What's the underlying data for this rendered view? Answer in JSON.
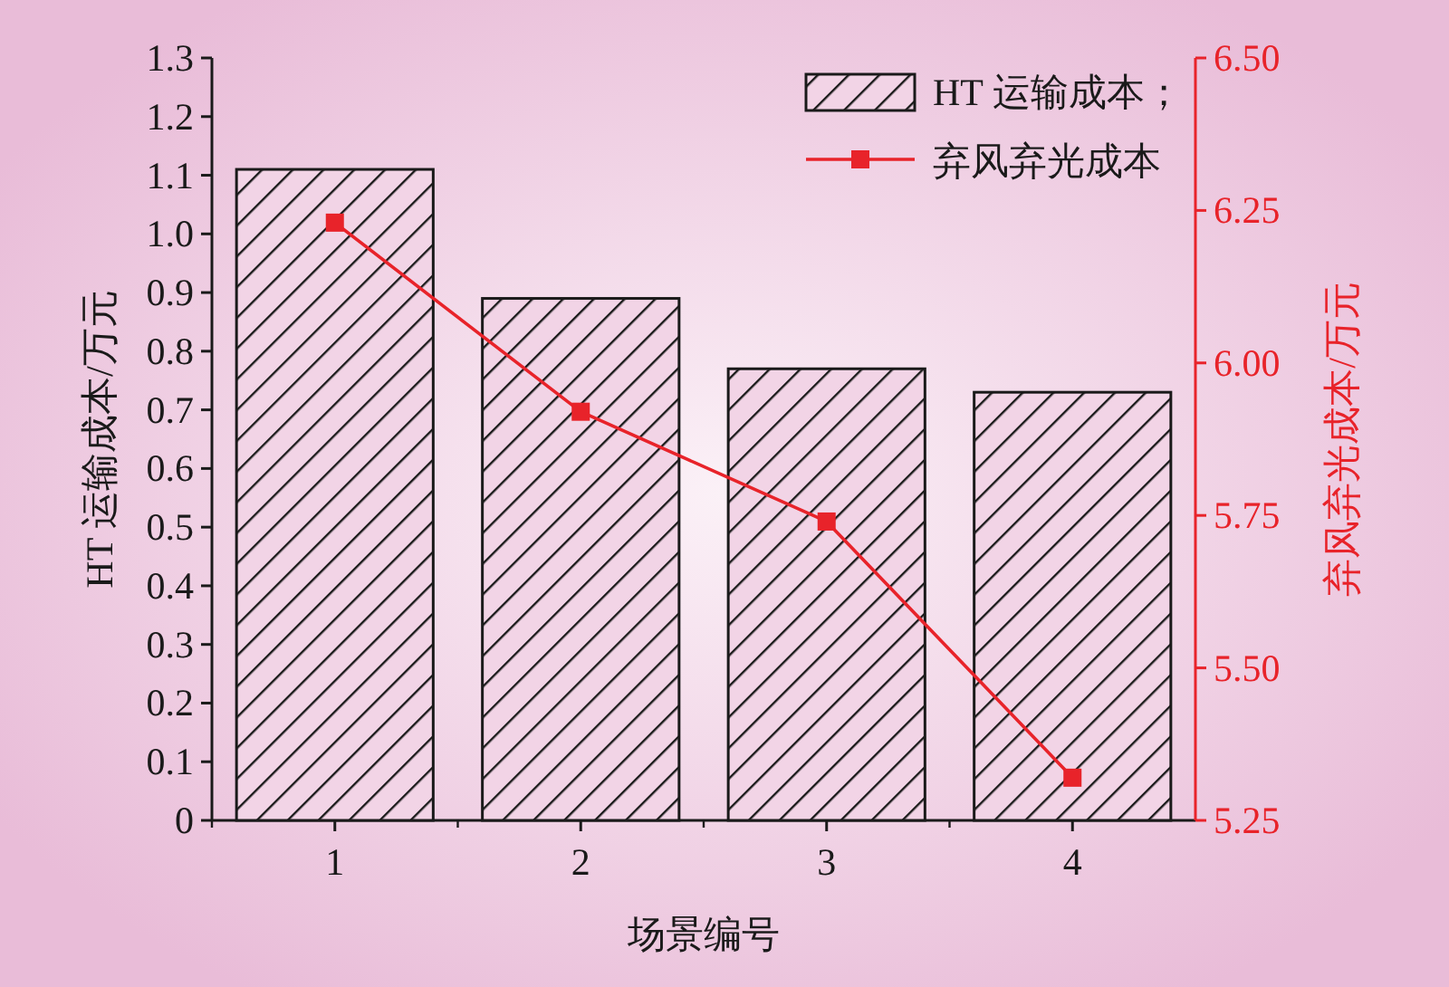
{
  "chart_data": {
    "type": "bar",
    "xlabel": "场景编号",
    "ylabel": "HT 运输成本/万元",
    "y2label": "弃风弃光成本/万元",
    "categories": [
      "1",
      "2",
      "3",
      "4"
    ],
    "series": [
      {
        "name": "HT 运输成本；",
        "color": "#1a1a1a",
        "values": [
          1.11,
          0.89,
          0.77,
          0.73
        ]
      },
      {
        "name": "弃风弃光成本",
        "type": "line",
        "axis": "y2",
        "color": "#e8232a",
        "marker": "square",
        "values": [
          6.23,
          5.92,
          5.74,
          5.32
        ]
      }
    ],
    "ylim": [
      0,
      1.3
    ],
    "yticks": [
      0,
      0.1,
      0.2,
      0.3,
      0.4,
      0.5,
      0.6,
      0.7,
      0.8,
      0.9,
      {
        "value": 1,
        "label": "1.0"
      },
      1.1,
      1.2,
      1.3
    ],
    "y2lim": [
      5.25,
      6.5
    ],
    "y2ticks": [
      5.25,
      {
        "value": 5.5,
        "label": "5.50"
      },
      5.75,
      {
        "value": 6,
        "label": "6.00"
      },
      6.25,
      {
        "value": 6.5,
        "label": "6.50"
      }
    ],
    "legend": "top right",
    "grid": false
  }
}
